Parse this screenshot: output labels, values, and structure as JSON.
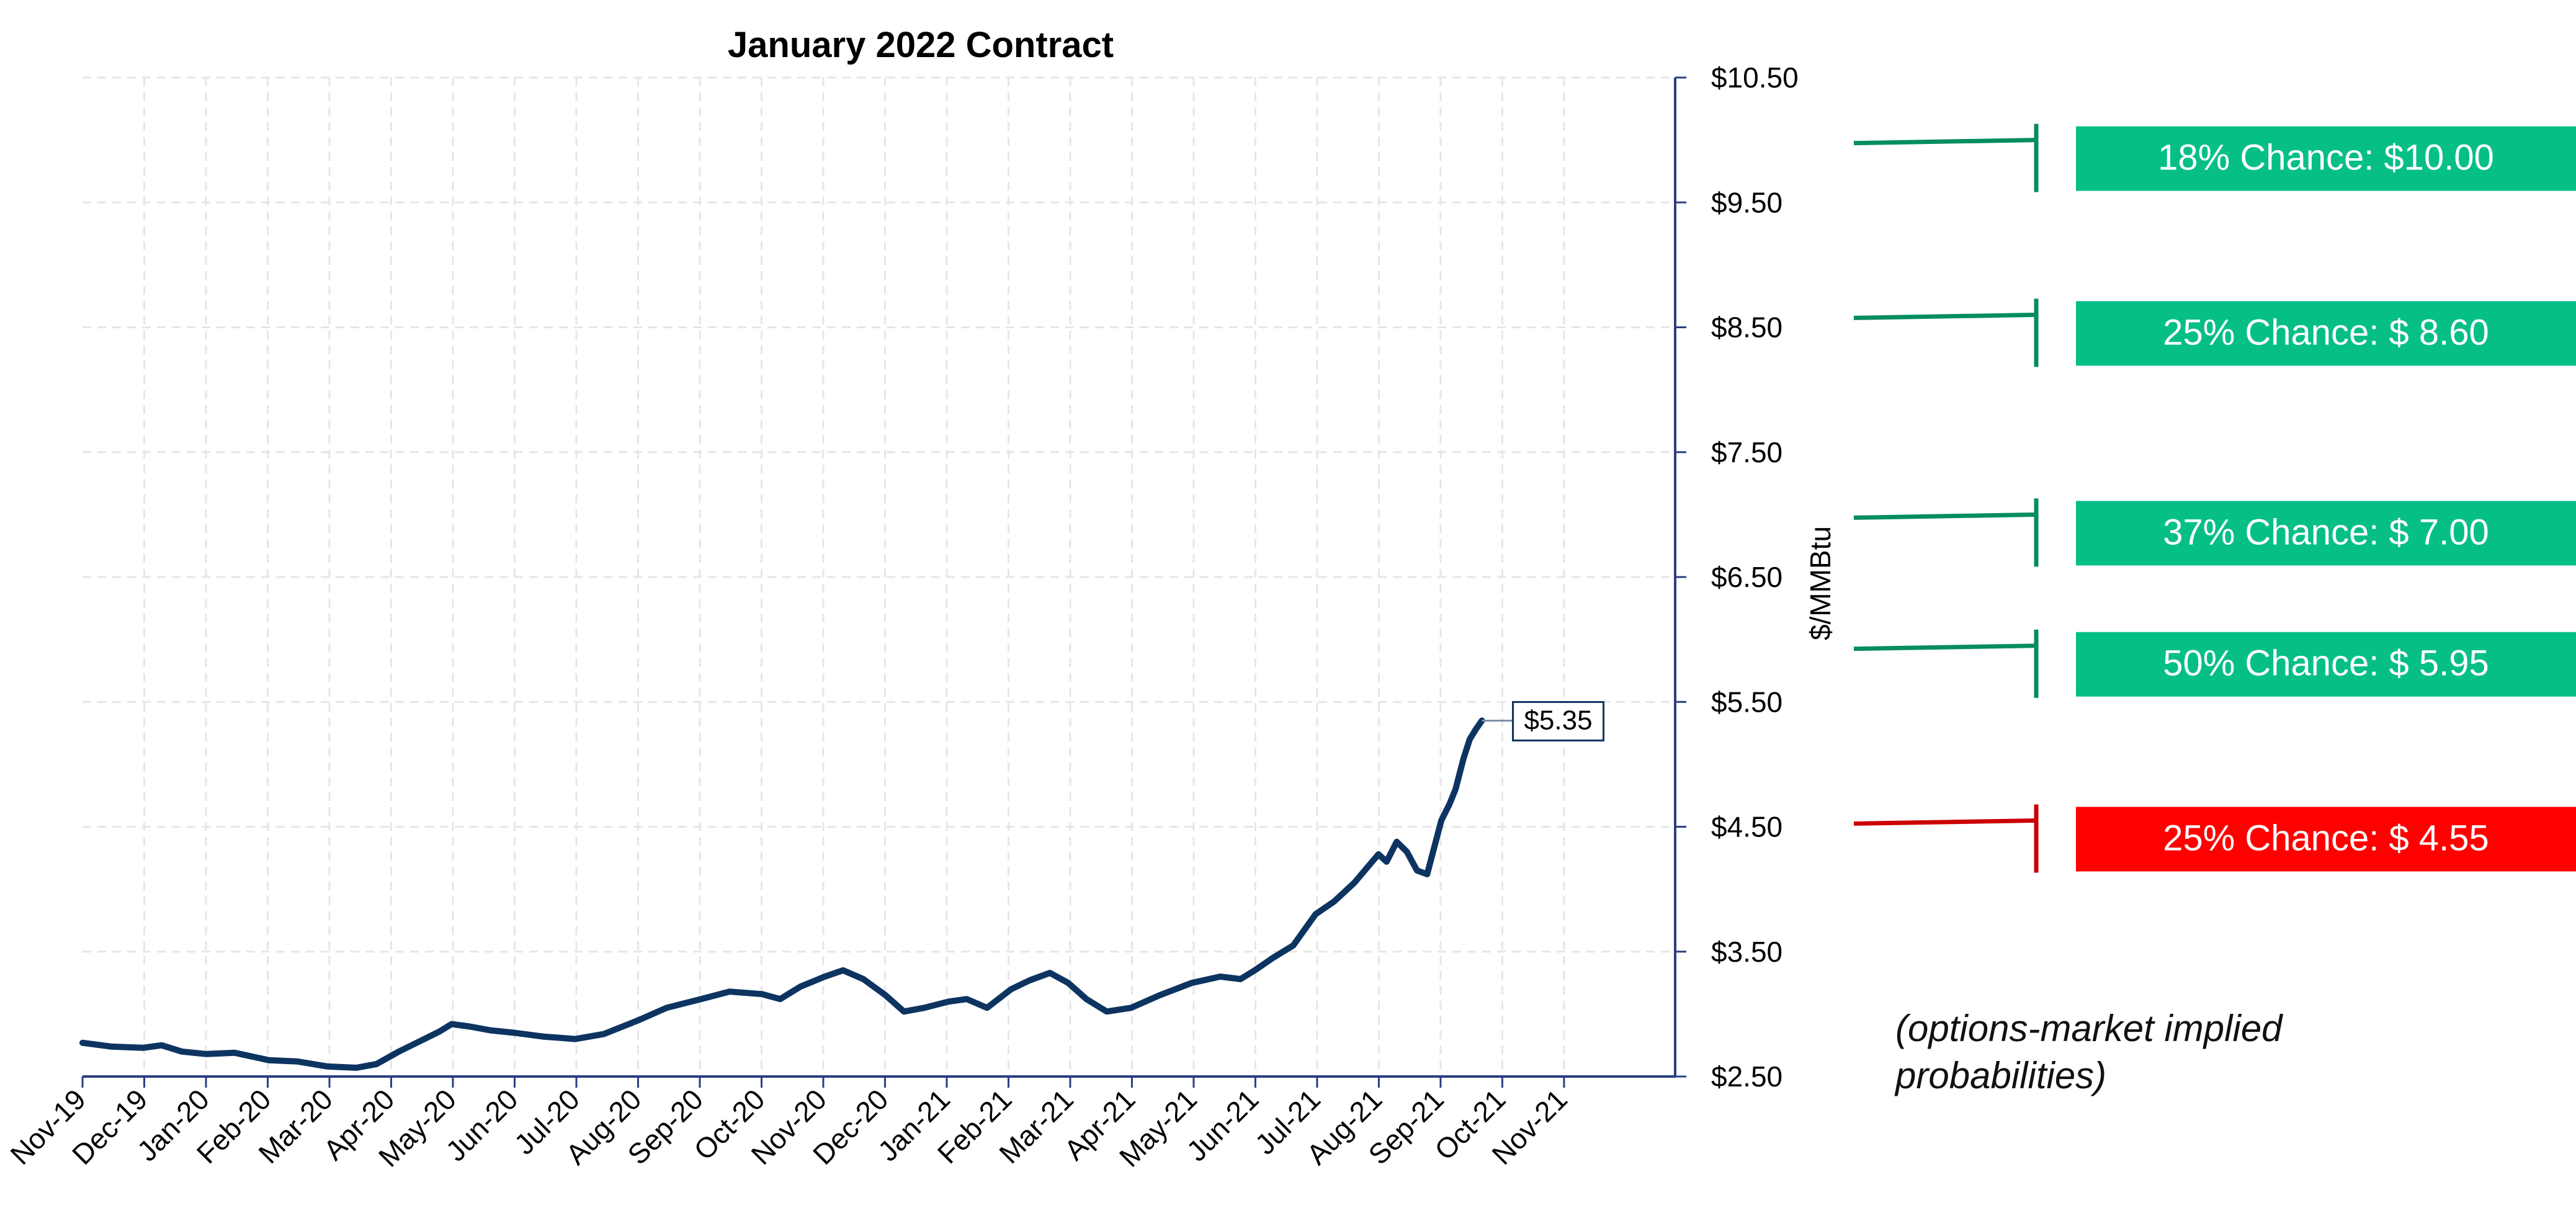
{
  "colors": {
    "line": "#0d3461",
    "axis": "#2b3f80",
    "grid": "#e6e6e6",
    "green": "#06bf87",
    "green_bracket": "#058d5f",
    "red": "#ff0000",
    "red_bracket": "#cc0000"
  },
  "note": "(options-market implied probabilities)",
  "chart_data": {
    "type": "line",
    "title": "January 2022 Contract",
    "ylabel": "$/MMBtu",
    "xlabel": "",
    "ylim": [
      2.5,
      10.5
    ],
    "y_ticks": [
      2.5,
      3.5,
      4.5,
      5.5,
      6.5,
      7.5,
      8.5,
      9.5,
      10.5
    ],
    "y_tick_labels": [
      "$2.50",
      "$3.50",
      "$4.50",
      "$5.50",
      "$6.50",
      "$7.50",
      "$8.50",
      "$9.50",
      "$10.50"
    ],
    "x_tick_labels": [
      "Nov-19",
      "Dec-19",
      "Jan-20",
      "Feb-20",
      "Mar-20",
      "Apr-20",
      "May-20",
      "Jun-20",
      "Jul-20",
      "Aug-20",
      "Sep-20",
      "Oct-20",
      "Nov-20",
      "Dec-20",
      "Jan-21",
      "Feb-21",
      "Mar-21",
      "Apr-21",
      "May-21",
      "Jun-21",
      "Jul-21",
      "Aug-21",
      "Sep-21",
      "Oct-21",
      "Nov-21"
    ],
    "grid": true,
    "last_value_label": "$5.35",
    "series": [
      {
        "x": [
          "2019-11-01",
          "2019-11-15",
          "2019-12-01",
          "2019-12-10",
          "2019-12-20",
          "2020-01-01",
          "2020-01-15",
          "2020-02-01",
          "2020-02-15",
          "2020-03-01",
          "2020-03-15",
          "2020-03-25",
          "2020-04-05",
          "2020-04-15",
          "2020-04-25",
          "2020-05-01",
          "2020-05-10",
          "2020-05-20",
          "2020-06-01",
          "2020-06-15",
          "2020-07-01",
          "2020-07-15",
          "2020-08-01",
          "2020-08-15",
          "2020-09-01",
          "2020-09-15",
          "2020-10-01",
          "2020-10-10",
          "2020-10-20",
          "2020-11-01",
          "2020-11-10",
          "2020-11-20",
          "2020-12-01",
          "2020-12-10",
          "2020-12-20",
          "2021-01-01",
          "2021-01-10",
          "2021-01-20",
          "2021-02-01",
          "2021-02-10",
          "2021-02-20",
          "2021-03-01",
          "2021-03-10",
          "2021-03-20",
          "2021-04-01",
          "2021-04-15",
          "2021-05-01",
          "2021-05-15",
          "2021-05-25",
          "2021-06-01",
          "2021-06-10",
          "2021-06-20",
          "2021-07-01",
          "2021-07-10",
          "2021-07-20",
          "2021-08-01",
          "2021-08-05",
          "2021-08-10",
          "2021-08-15",
          "2021-08-20",
          "2021-08-25",
          "2021-09-01",
          "2021-09-05",
          "2021-09-08",
          "2021-09-12",
          "2021-09-15",
          "2021-09-18",
          "2021-09-21"
        ],
        "values": [
          2.77,
          2.74,
          2.73,
          2.75,
          2.7,
          2.68,
          2.69,
          2.63,
          2.62,
          2.58,
          2.57,
          2.6,
          2.7,
          2.78,
          2.86,
          2.92,
          2.9,
          2.87,
          2.85,
          2.82,
          2.8,
          2.84,
          2.95,
          3.05,
          3.12,
          3.18,
          3.16,
          3.12,
          3.22,
          3.3,
          3.35,
          3.28,
          3.15,
          3.02,
          3.05,
          3.1,
          3.12,
          3.05,
          3.2,
          3.27,
          3.33,
          3.25,
          3.12,
          3.02,
          3.05,
          3.15,
          3.25,
          3.3,
          3.28,
          3.35,
          3.45,
          3.55,
          3.8,
          3.9,
          4.05,
          4.28,
          4.22,
          4.38,
          4.3,
          4.15,
          4.12,
          4.55,
          4.68,
          4.8,
          5.05,
          5.2,
          5.28,
          5.35
        ]
      }
    ],
    "probabilities": [
      {
        "label": "18% Chance: $10.00",
        "value": 10.0,
        "color": "green"
      },
      {
        "label": "25% Chance: $ 8.60",
        "value": 8.6,
        "color": "green"
      },
      {
        "label": "37% Chance: $ 7.00",
        "value": 7.0,
        "color": "green"
      },
      {
        "label": "50% Chance: $ 5.95",
        "value": 5.95,
        "color": "green"
      },
      {
        "label": "25% Chance: $ 4.55",
        "value": 4.55,
        "color": "red"
      }
    ]
  }
}
